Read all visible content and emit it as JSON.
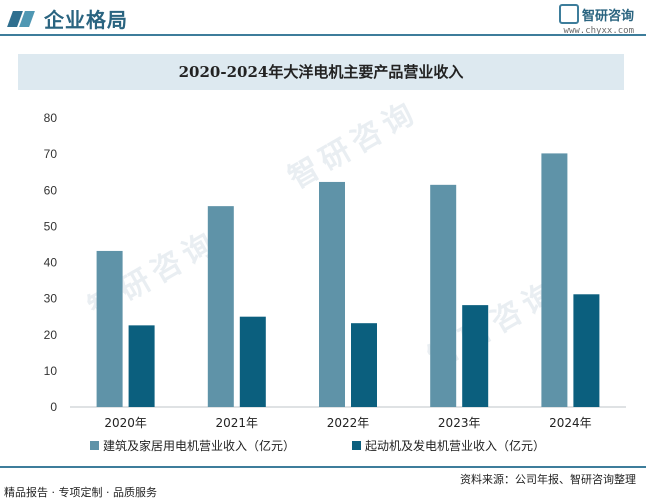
{
  "header": {
    "title": "企业格局",
    "logo_name": "智研咨询",
    "logo_url": "www.chyxx.com"
  },
  "colors": {
    "series1": "#5f93a8",
    "series2": "#0b5f7e",
    "accent": "#3d7d9b"
  },
  "chart_data": {
    "type": "bar",
    "title": "2020-2024年大洋电机主要产品营业收入",
    "categories": [
      "2020年",
      "2021年",
      "2022年",
      "2023年",
      "2024年"
    ],
    "series": [
      {
        "name": "建筑及家居用电机营业收入（亿元）",
        "values": [
          43.2,
          55.6,
          62.3,
          61.5,
          70.2
        ]
      },
      {
        "name": "起动机及发电机营业收入（亿元）",
        "values": [
          22.6,
          25.0,
          23.2,
          28.2,
          31.2
        ]
      }
    ],
    "ylim": [
      0,
      80
    ],
    "yticks": [
      "0",
      "10",
      "20",
      "30",
      "40",
      "50",
      "60",
      "70",
      "80"
    ],
    "grid": false,
    "legend": "bottom"
  },
  "footer": {
    "left": "精品报告 · 专项定制 · 品质服务",
    "right": "资料来源：公司年报、智研咨询整理"
  },
  "watermark": "智研咨询"
}
